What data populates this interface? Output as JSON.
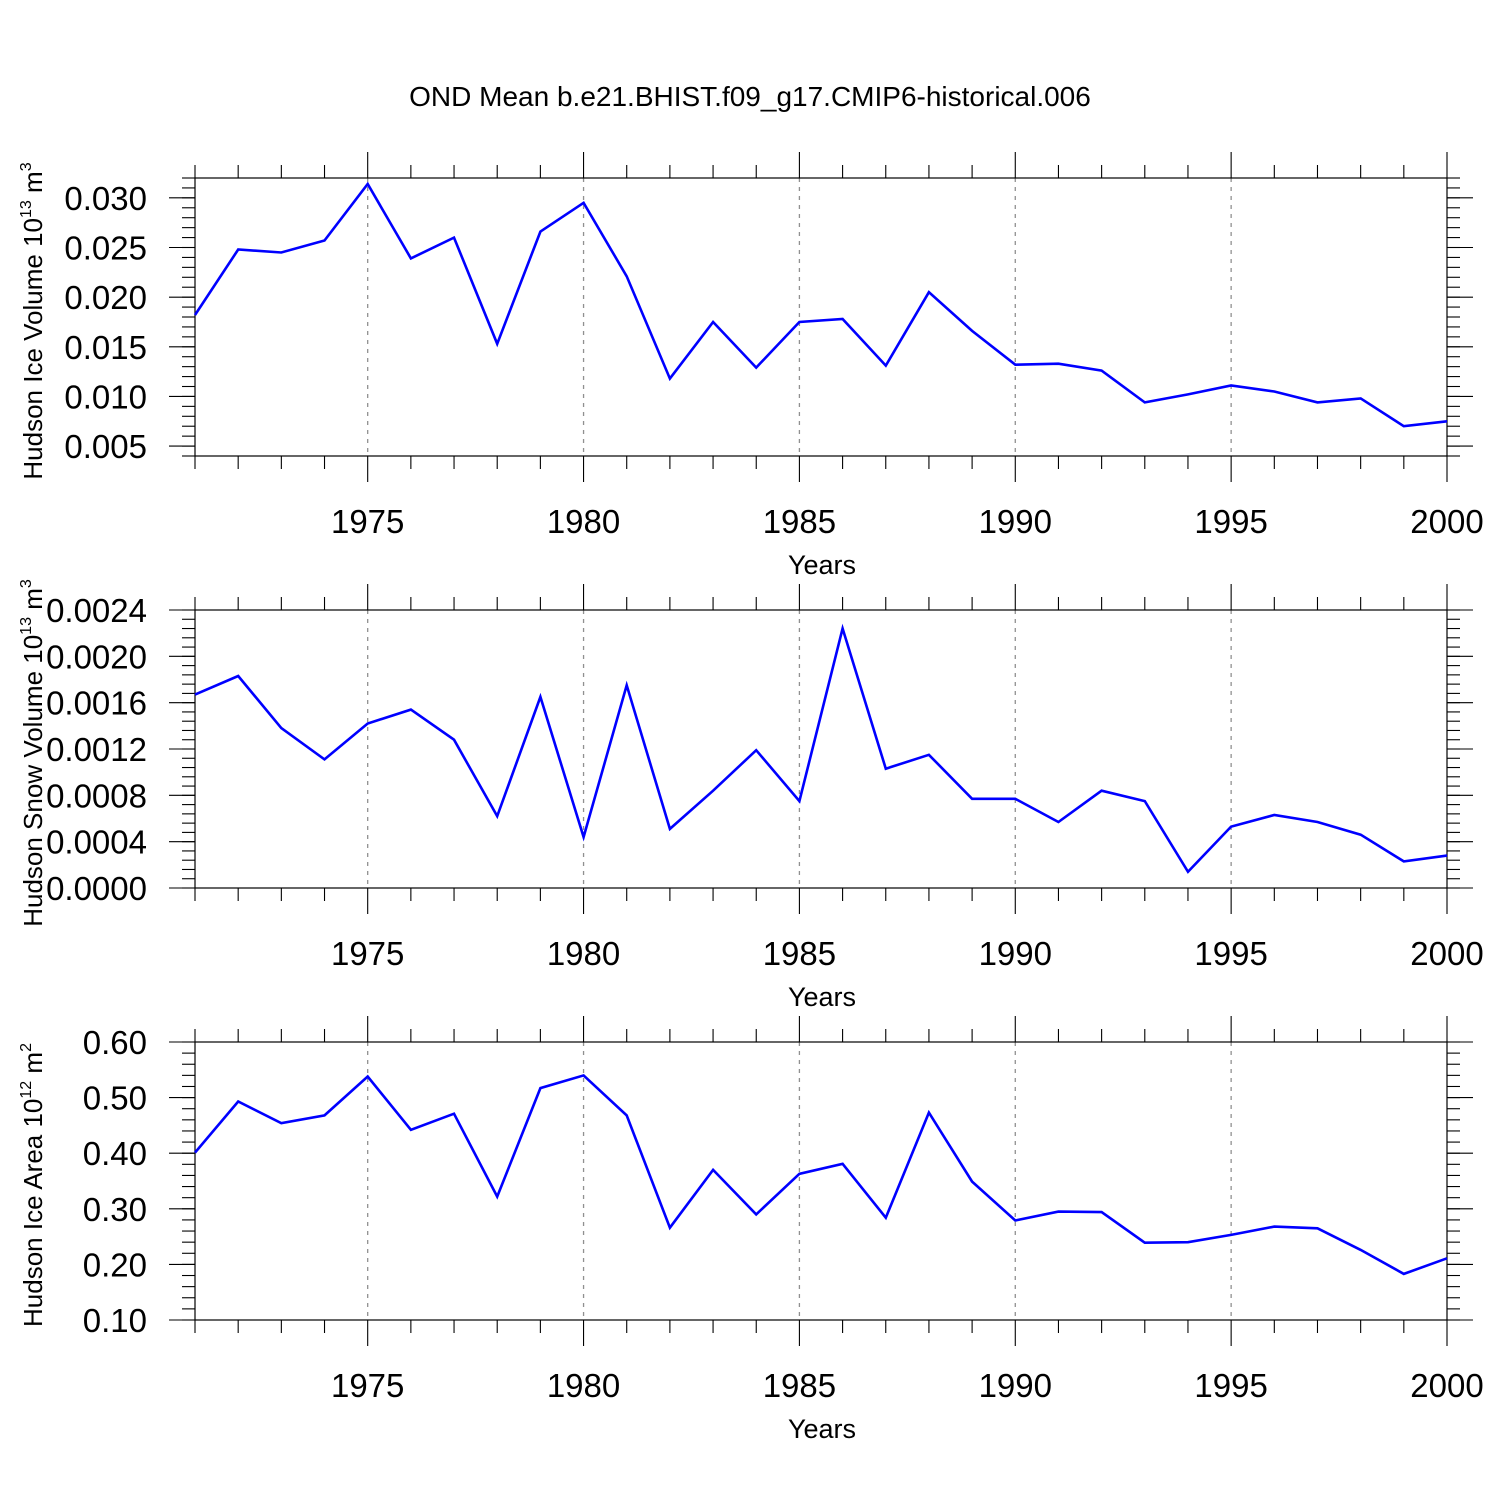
{
  "title": "OND Mean b.e21.BHIST.f09_g17.CMIP6-historical.006",
  "line_color": "#0000ff",
  "chart_data": [
    {
      "type": "line",
      "ylabel_main": "Hudson Ice Volume 10",
      "ylabel_exp": "13",
      "ylabel_unit": "m",
      "ylabel_unit_exp": "3",
      "xlabel": "Years",
      "xlim": [
        1971,
        2000
      ],
      "ylim": [
        0.004,
        0.032
      ],
      "yticks": [
        0.005,
        0.01,
        0.015,
        0.02,
        0.025,
        0.03
      ],
      "ytick_labels": [
        "0.005",
        "0.010",
        "0.015",
        "0.020",
        "0.025",
        "0.030"
      ],
      "xticks": [
        1975,
        1980,
        1985,
        1990,
        1995,
        2000
      ],
      "xtick_labels": [
        "1975",
        "1980",
        "1985",
        "1990",
        "1995",
        "2000"
      ],
      "grid": "dashed vertical at major x ticks",
      "x": [
        1971,
        1972,
        1973,
        1974,
        1975,
        1976,
        1977,
        1978,
        1979,
        1980,
        1981,
        1982,
        1983,
        1984,
        1985,
        1986,
        1987,
        1988,
        1989,
        1990,
        1991,
        1992,
        1993,
        1994,
        1995,
        1996,
        1997,
        1998,
        1999,
        2000
      ],
      "series": [
        {
          "values": [
            0.0182,
            0.0248,
            0.0245,
            0.0257,
            0.0314,
            0.0239,
            0.026,
            0.0153,
            0.0266,
            0.0295,
            0.0221,
            0.0118,
            0.0175,
            0.0129,
            0.0175,
            0.0178,
            0.0131,
            0.0205,
            0.0166,
            0.0132,
            0.0133,
            0.0126,
            0.0094,
            0.0102,
            0.0111,
            0.0105,
            0.0094,
            0.0098,
            0.007,
            0.0075
          ]
        }
      ]
    },
    {
      "type": "line",
      "ylabel_main": "Hudson Snow Volume 10",
      "ylabel_exp": "13",
      "ylabel_unit": "m",
      "ylabel_unit_exp": "3",
      "xlabel": "Years",
      "xlim": [
        1971,
        2000
      ],
      "ylim": [
        0.0,
        0.0024
      ],
      "yticks": [
        0.0,
        0.0004,
        0.0008,
        0.0012,
        0.0016,
        0.002,
        0.0024
      ],
      "ytick_labels": [
        "0.0000",
        "0.0004",
        "0.0008",
        "0.0012",
        "0.0016",
        "0.0020",
        "0.0024"
      ],
      "xticks": [
        1975,
        1980,
        1985,
        1990,
        1995,
        2000
      ],
      "xtick_labels": [
        "1975",
        "1980",
        "1985",
        "1990",
        "1995",
        "2000"
      ],
      "grid": "dashed vertical at major x ticks",
      "x": [
        1971,
        1972,
        1973,
        1974,
        1975,
        1976,
        1977,
        1978,
        1979,
        1980,
        1981,
        1982,
        1983,
        1984,
        1985,
        1986,
        1987,
        1988,
        1989,
        1990,
        1991,
        1992,
        1993,
        1994,
        1995,
        1996,
        1997,
        1998,
        1999,
        2000
      ],
      "series": [
        {
          "values": [
            0.00167,
            0.00183,
            0.00138,
            0.00111,
            0.00142,
            0.00154,
            0.00128,
            0.00062,
            0.00165,
            0.00044,
            0.00175,
            0.00051,
            0.00084,
            0.00119,
            0.00075,
            0.00224,
            0.00103,
            0.00115,
            0.00077,
            0.00077,
            0.00057,
            0.00084,
            0.00075,
            0.00014,
            0.00053,
            0.00063,
            0.00057,
            0.00046,
            0.00023,
            0.00028
          ]
        }
      ]
    },
    {
      "type": "line",
      "ylabel_main": "Hudson Ice Area 10",
      "ylabel_exp": "12",
      "ylabel_unit": "m",
      "ylabel_unit_exp": "2",
      "xlabel": "Years",
      "xlim": [
        1971,
        2000
      ],
      "ylim": [
        0.1,
        0.6
      ],
      "yticks": [
        0.1,
        0.2,
        0.3,
        0.4,
        0.5,
        0.6
      ],
      "ytick_labels": [
        "0.10",
        "0.20",
        "0.30",
        "0.40",
        "0.50",
        "0.60"
      ],
      "xticks": [
        1975,
        1980,
        1985,
        1990,
        1995,
        2000
      ],
      "xtick_labels": [
        "1975",
        "1980",
        "1985",
        "1990",
        "1995",
        "2000"
      ],
      "grid": "dashed vertical at major x ticks",
      "x": [
        1971,
        1972,
        1973,
        1974,
        1975,
        1976,
        1977,
        1978,
        1979,
        1980,
        1981,
        1982,
        1983,
        1984,
        1985,
        1986,
        1987,
        1988,
        1989,
        1990,
        1991,
        1992,
        1993,
        1994,
        1995,
        1996,
        1997,
        1998,
        1999,
        2000
      ],
      "series": [
        {
          "values": [
            0.401,
            0.493,
            0.454,
            0.468,
            0.538,
            0.442,
            0.471,
            0.322,
            0.517,
            0.54,
            0.468,
            0.266,
            0.37,
            0.29,
            0.363,
            0.381,
            0.284,
            0.473,
            0.349,
            0.279,
            0.295,
            0.294,
            0.239,
            0.24,
            0.253,
            0.268,
            0.265,
            0.226,
            0.183,
            0.211
          ]
        }
      ]
    }
  ]
}
